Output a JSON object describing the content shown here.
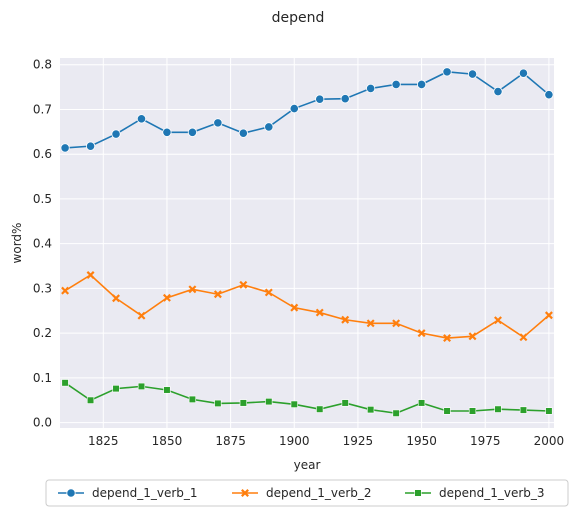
{
  "chart_data": {
    "type": "line",
    "title": "depend",
    "xlabel": "year",
    "ylabel": "word%",
    "xlim": [
      1808,
      2002
    ],
    "ylim": [
      -0.012,
      0.815
    ],
    "xticks": [
      1825,
      1850,
      1875,
      1900,
      1925,
      1950,
      1975,
      2000
    ],
    "yticks": [
      0.0,
      0.1,
      0.2,
      0.3,
      0.4,
      0.5,
      0.6,
      0.7,
      0.8
    ],
    "grid": true,
    "legend_position": "bottom-center",
    "x": [
      1810,
      1820,
      1830,
      1840,
      1850,
      1860,
      1870,
      1880,
      1890,
      1900,
      1910,
      1920,
      1930,
      1940,
      1950,
      1960,
      1970,
      1980,
      1990,
      2000
    ],
    "series": [
      {
        "name": "depend_1_verb_1",
        "color": "#1f77b4",
        "marker": "circle",
        "values": [
          0.614,
          0.618,
          0.645,
          0.679,
          0.649,
          0.649,
          0.67,
          0.647,
          0.661,
          0.702,
          0.723,
          0.724,
          0.747,
          0.756,
          0.756,
          0.784,
          0.779,
          0.74,
          0.781,
          0.733
        ]
      },
      {
        "name": "depend_1_verb_2",
        "color": "#ff7f0e",
        "marker": "x",
        "values": [
          0.295,
          0.33,
          0.278,
          0.239,
          0.279,
          0.298,
          0.287,
          0.308,
          0.291,
          0.257,
          0.246,
          0.23,
          0.222,
          0.222,
          0.2,
          0.189,
          0.193,
          0.229,
          0.191,
          0.24
        ]
      },
      {
        "name": "depend_1_verb_3",
        "color": "#2ca02c",
        "marker": "square",
        "values": [
          0.089,
          0.05,
          0.076,
          0.081,
          0.073,
          0.052,
          0.043,
          0.044,
          0.047,
          0.041,
          0.03,
          0.044,
          0.029,
          0.021,
          0.044,
          0.026,
          0.026,
          0.03,
          0.028,
          0.026
        ]
      }
    ]
  }
}
